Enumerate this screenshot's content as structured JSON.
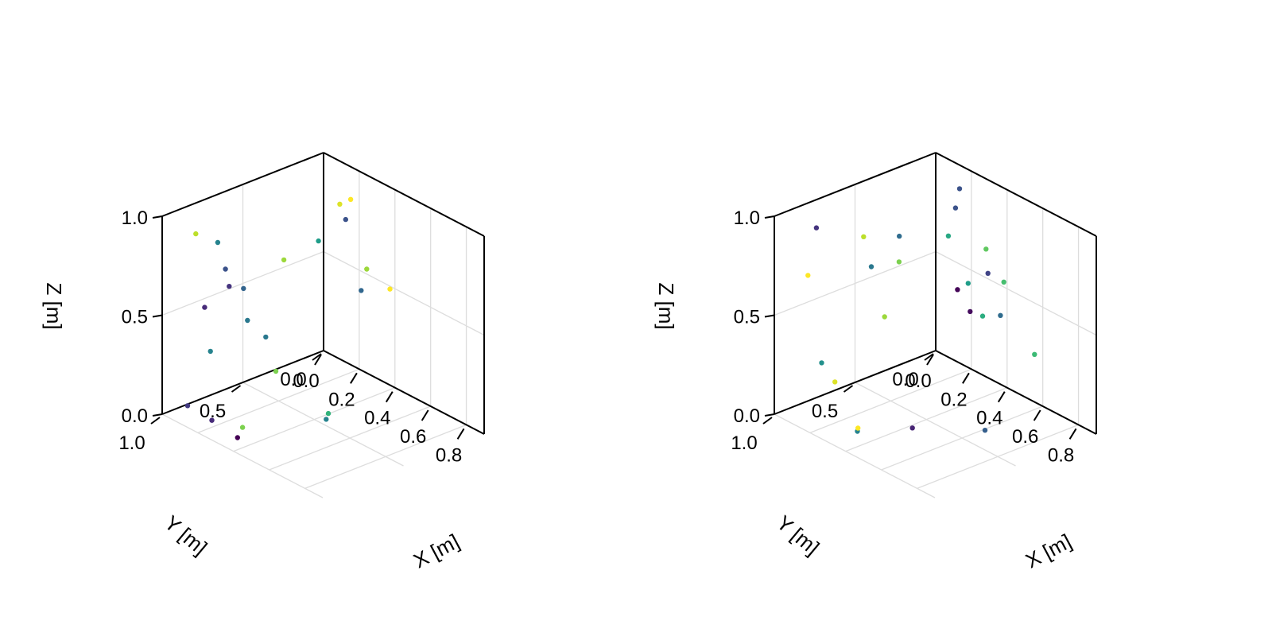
{
  "chart_data": [
    {
      "type": "scatter3d",
      "panel": "left",
      "xlabel": "X [m]",
      "ylabel": "Y [m]",
      "zlabel": "Z [m]",
      "xlim": [
        0,
        0.9
      ],
      "ylim": [
        0,
        1.0
      ],
      "zlim": [
        0,
        1.0
      ],
      "x_ticks": [
        "0.0",
        "0.2",
        "0.4",
        "0.6",
        "0.8"
      ],
      "y_ticks": [
        "0.0",
        "0.5",
        "1.0"
      ],
      "z_ticks": [
        "0.0",
        "0.5",
        "1.0"
      ],
      "grid": true,
      "colormap": "viridis",
      "points": [
        {
          "x": 0.02,
          "y": 0.38,
          "z": 0.2,
          "c": 0.4
        },
        {
          "x": 0.23,
          "y": 0.55,
          "z": 0.18,
          "c": 0.8
        },
        {
          "x": 0.08,
          "y": 0.88,
          "z": 0.91,
          "c": 0.9
        },
        {
          "x": 0.13,
          "y": 0.64,
          "z": 0.58,
          "c": 0.32
        },
        {
          "x": 0.03,
          "y": 0.77,
          "z": 0.48,
          "c": 0.12
        },
        {
          "x": 0.47,
          "y": 0.49,
          "z": 0.06,
          "c": 0.65
        },
        {
          "x": 0.36,
          "y": 0.9,
          "z": 0.07,
          "c": 0.8
        },
        {
          "x": 0.08,
          "y": 0.12,
          "z": 0.63,
          "c": 0.55
        },
        {
          "x": 0.08,
          "y": 0.56,
          "z": 0.37,
          "c": 0.4
        },
        {
          "x": 0.04,
          "y": 0.29,
          "z": 0.57,
          "c": 0.85
        },
        {
          "x": 0.35,
          "y": 0.92,
          "z": 0.02,
          "c": 0.0
        },
        {
          "x": 0.16,
          "y": 0.04,
          "z": 0.75,
          "c": 0.25
        },
        {
          "x": 0.04,
          "y": 0.7,
          "z": 0.79,
          "c": 0.45
        },
        {
          "x": 0.17,
          "y": 0.02,
          "z": 0.85,
          "c": 1.0
        },
        {
          "x": 0.1,
          "y": 0.01,
          "z": 0.79,
          "c": 0.95
        },
        {
          "x": 0.39,
          "y": 0.02,
          "z": 0.5,
          "c": 1.0
        },
        {
          "x": 0.44,
          "y": 0.47,
          "z": 0.01,
          "c": 0.45
        },
        {
          "x": 0.07,
          "y": 0.92,
          "z": 0.05,
          "c": 0.17
        },
        {
          "x": 0.17,
          "y": 0.88,
          "z": 0.01,
          "c": 0.12
        },
        {
          "x": 0.26,
          "y": 0.02,
          "z": 0.54,
          "c": 0.85
        },
        {
          "x": 0.24,
          "y": 0.85,
          "z": 0.71,
          "c": 0.15
        },
        {
          "x": 0.18,
          "y": 0.9,
          "z": 0.37,
          "c": 0.45
        },
        {
          "x": 0.21,
          "y": 0.84,
          "z": 0.78,
          "c": 0.25
        },
        {
          "x": 0.22,
          "y": 0.01,
          "z": 0.41,
          "c": 0.33
        }
      ]
    },
    {
      "type": "scatter3d",
      "panel": "right",
      "xlabel": "X [m]",
      "ylabel": "Y [m]",
      "zlabel": "Z [m]",
      "xlim": [
        0,
        0.9
      ],
      "ylim": [
        0,
        1.0
      ],
      "zlim": [
        0,
        1.0
      ],
      "x_ticks": [
        "0.0",
        "0.2",
        "0.4",
        "0.6",
        "0.8"
      ],
      "y_ticks": [
        "0.0",
        "0.5",
        "1.0"
      ],
      "z_ticks": [
        "0.0",
        "0.5",
        "1.0"
      ],
      "grid": true,
      "colormap": "viridis",
      "points": [
        {
          "x": 0.1,
          "y": 0.85,
          "z": 0.94,
          "c": 0.15
        },
        {
          "x": 0.22,
          "y": 0.69,
          "z": 0.9,
          "c": 0.9
        },
        {
          "x": 0.08,
          "y": 0.88,
          "z": 0.7,
          "c": 1.0
        },
        {
          "x": 0.17,
          "y": 0.04,
          "z": 0.91,
          "c": 0.25
        },
        {
          "x": 0.12,
          "y": 0.01,
          "z": 0.78,
          "c": 0.25
        },
        {
          "x": 0.08,
          "y": 0.01,
          "z": 0.62,
          "c": 0.6
        },
        {
          "x": 0.41,
          "y": 0.77,
          "z": 0.61,
          "c": 0.85
        },
        {
          "x": 0.3,
          "y": 0.02,
          "z": 0.66,
          "c": 0.75
        },
        {
          "x": 0.23,
          "y": 0.48,
          "z": 0.84,
          "c": 0.35
        },
        {
          "x": 0.22,
          "y": 0.03,
          "z": 0.31,
          "c": 0.03
        },
        {
          "x": 0.12,
          "y": 0.36,
          "z": 0.62,
          "c": 0.8
        },
        {
          "x": 0.01,
          "y": 0.41,
          "z": 0.56,
          "c": 0.4
        },
        {
          "x": 0.14,
          "y": 0.02,
          "z": 0.38,
          "c": 0.01
        },
        {
          "x": 0.29,
          "y": 0.03,
          "z": 0.32,
          "c": 0.62
        },
        {
          "x": 0.4,
          "y": 0.02,
          "z": 0.54,
          "c": 0.7
        },
        {
          "x": 0.03,
          "y": 0.74,
          "z": 0.19,
          "c": 0.5
        },
        {
          "x": 0.24,
          "y": 0.89,
          "z": 0.24,
          "c": 0.95
        },
        {
          "x": 0.33,
          "y": 0.85,
          "z": 0.02,
          "c": 0.45
        },
        {
          "x": 0.36,
          "y": 0.88,
          "z": 0.06,
          "c": 1.0
        },
        {
          "x": 0.62,
          "y": 0.38,
          "z": 0.01,
          "c": 0.3
        },
        {
          "x": 0.32,
          "y": 0.03,
          "z": 0.55,
          "c": 0.2
        },
        {
          "x": 0.59,
          "y": 0.04,
          "z": 0.27,
          "c": 0.68
        },
        {
          "x": 0.39,
          "y": 0.03,
          "z": 0.37,
          "c": 0.35
        },
        {
          "x": 0.43,
          "y": 0.62,
          "z": 0.01,
          "c": 0.1
        },
        {
          "x": 0.2,
          "y": 0.02,
          "z": 0.44,
          "c": 0.55
        }
      ]
    }
  ]
}
